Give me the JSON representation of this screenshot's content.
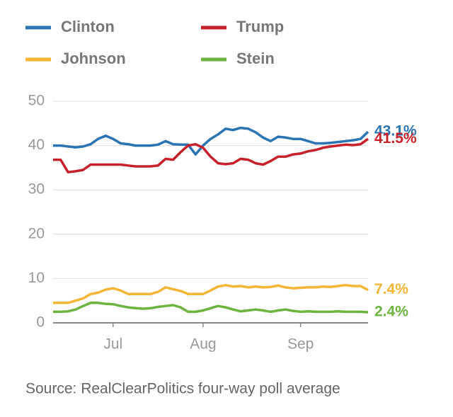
{
  "chart_data": {
    "type": "line",
    "source": "Source: RealClearPolitics four-way poll average",
    "categories": [
      null,
      null,
      null,
      null,
      null,
      null,
      null,
      null,
      "Jul",
      null,
      null,
      null,
      null,
      null,
      null,
      null,
      null,
      null,
      null,
      null,
      "Aug",
      null,
      null,
      null,
      null,
      null,
      null,
      null,
      null,
      null,
      null,
      null,
      null,
      "Sep",
      null,
      null,
      null,
      null,
      null,
      null,
      null,
      null,
      null
    ],
    "ylim": [
      0,
      50
    ],
    "yticks": [
      0,
      10,
      20,
      30,
      40,
      50
    ],
    "grid": true,
    "series": [
      {
        "name": "Clinton",
        "color": "#2a74b3",
        "end_label": "43.1%",
        "values": [
          40,
          40,
          39.8,
          39.6,
          39.8,
          40.3,
          41.5,
          42.2,
          41.5,
          40.5,
          40.3,
          40,
          40,
          40,
          40.2,
          41,
          40.3,
          40.2,
          40.2,
          38,
          40,
          41.5,
          42.5,
          43.8,
          43.5,
          44,
          43.8,
          43,
          41.8,
          41,
          42,
          41.8,
          41.5,
          41.5,
          41,
          40.5,
          40.5,
          40.6,
          40.8,
          41,
          41.2,
          41.5,
          43.1
        ]
      },
      {
        "name": "Trump",
        "color": "#c8202a",
        "end_label": "41.5%",
        "values": [
          36.8,
          36.8,
          34,
          34.2,
          34.5,
          35.7,
          35.7,
          35.7,
          35.7,
          35.7,
          35.5,
          35.3,
          35.3,
          35.3,
          35.5,
          37,
          36.8,
          38.5,
          40,
          40.3,
          39.5,
          37.5,
          36,
          35.8,
          36,
          37,
          36.8,
          36,
          35.7,
          36.5,
          37.5,
          37.5,
          38,
          38.2,
          38.7,
          39,
          39.5,
          39.8,
          40,
          40.2,
          40.1,
          40.3,
          41.5
        ]
      },
      {
        "name": "Johnson",
        "color": "#f5b536",
        "end_label": "7.4%",
        "values": [
          4.5,
          4.5,
          4.5,
          5,
          5.5,
          6.5,
          6.8,
          7.5,
          7.8,
          7.3,
          6.5,
          6.5,
          6.5,
          6.5,
          7,
          8,
          7.6,
          7.2,
          6.5,
          6.5,
          6.5,
          7.3,
          8.2,
          8.5,
          8.2,
          8.3,
          8,
          8.2,
          8,
          8.1,
          8.4,
          8,
          7.8,
          7.9,
          8,
          8,
          8.2,
          8.1,
          8.3,
          8.5,
          8.3,
          8.3,
          7.4
        ]
      },
      {
        "name": "Stein",
        "color": "#6db33f",
        "end_label": "2.4%",
        "values": [
          2.5,
          2.5,
          2.6,
          3,
          3.8,
          4.5,
          4.5,
          4.3,
          4.2,
          3.8,
          3.5,
          3.3,
          3.2,
          3.3,
          3.6,
          3.8,
          4,
          3.5,
          2.5,
          2.5,
          2.8,
          3.3,
          3.8,
          3.5,
          3,
          2.6,
          2.8,
          3,
          2.8,
          2.5,
          2.8,
          3,
          2.7,
          2.5,
          2.6,
          2.5,
          2.5,
          2.5,
          2.6,
          2.5,
          2.5,
          2.5,
          2.4
        ]
      }
    ]
  }
}
